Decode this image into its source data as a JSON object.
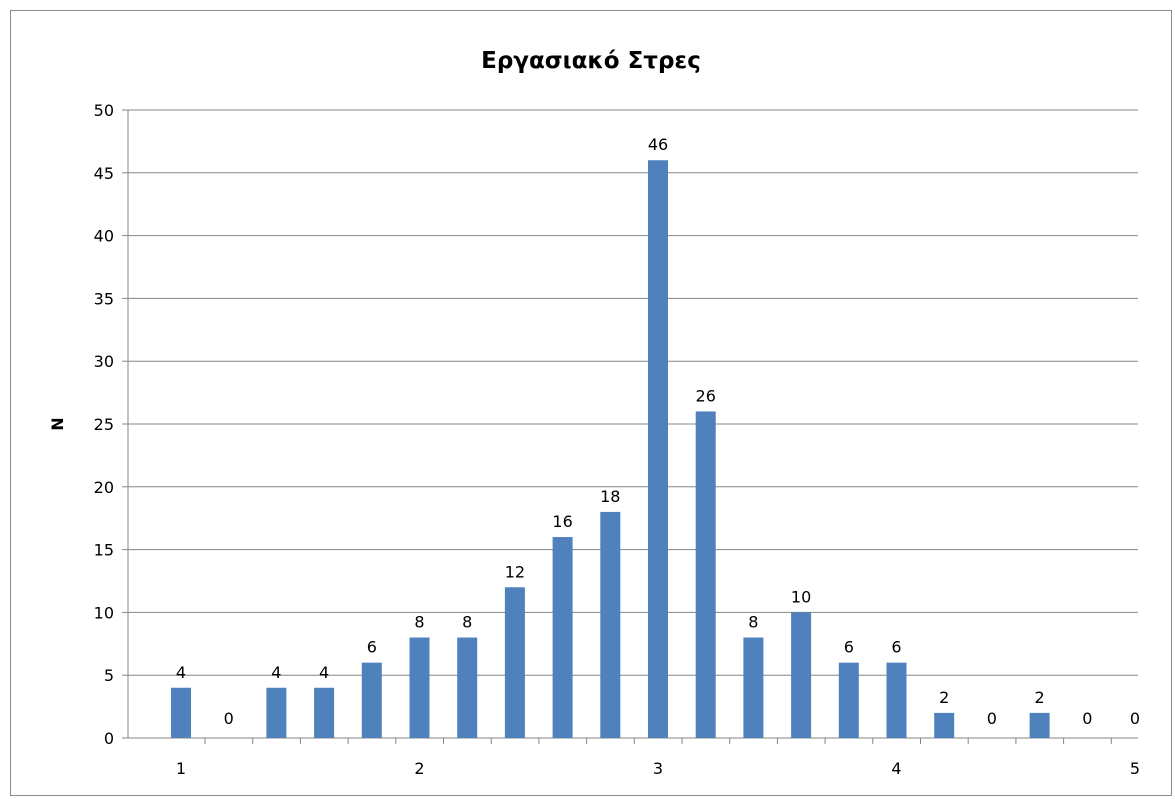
{
  "chart_data": {
    "type": "bar",
    "title": "Εργασιακό Στρες",
    "xlabel": "",
    "ylabel": "N",
    "xlim": [
      1,
      5
    ],
    "ylim": [
      0,
      50
    ],
    "y_ticks": [
      0,
      5,
      10,
      15,
      20,
      25,
      30,
      35,
      40,
      45,
      50
    ],
    "x_ticks": [
      1,
      2,
      3,
      4,
      5
    ],
    "x": [
      1,
      1.2,
      1.4,
      1.6,
      1.8,
      2,
      2.2,
      2.4,
      2.6,
      2.8,
      3,
      3.2,
      3.4,
      3.6,
      3.8,
      4,
      4.2,
      4.4,
      4.6,
      4.8,
      5
    ],
    "values": [
      4,
      0,
      4,
      4,
      6,
      8,
      8,
      12,
      16,
      18,
      46,
      26,
      8,
      10,
      6,
      6,
      2,
      0,
      2,
      0,
      0
    ],
    "grid": true,
    "bar_color": "#4f81bd",
    "gridline_color": "#868686"
  }
}
